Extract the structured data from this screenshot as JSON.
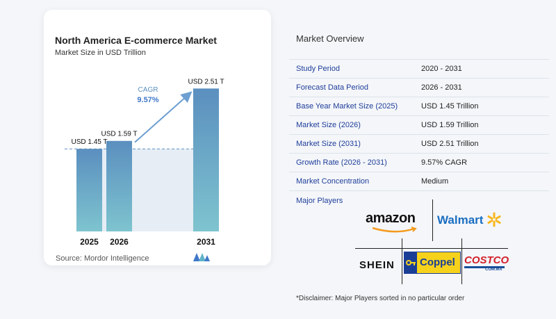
{
  "chart_data": {
    "type": "bar",
    "title": "North America E-commerce Market",
    "subtitle": "Market Size in USD Trillion",
    "categories": [
      "2025",
      "2026",
      "2031"
    ],
    "values": [
      1.45,
      1.59,
      2.51
    ],
    "value_labels": [
      "USD 1.45 T",
      "USD 1.59 T",
      "USD 2.51 T"
    ],
    "cagr_label": "CAGR",
    "cagr_value": "9.57%",
    "ylim": [
      0,
      2.6
    ]
  },
  "source": "Source:  Mordor Intelligence",
  "overview": {
    "title": "Market Overview",
    "rows": [
      {
        "key": "Study Period",
        "value": "2020 - 2031"
      },
      {
        "key": "Forecast Data Period",
        "value": "2026 - 2031"
      },
      {
        "key": "Base Year Market Size (2025)",
        "value": "USD 1.45 Trillion"
      },
      {
        "key": "Market Size (2026)",
        "value": "USD 1.59 Trillion"
      },
      {
        "key": "Market Size (2031)",
        "value": "USD 2.51 Trillion"
      },
      {
        "key": "Growth Rate (2026 - 2031)",
        "value": "9.57% CAGR"
      },
      {
        "key": "Market Concentration",
        "value": "Medium"
      }
    ]
  },
  "major_players": {
    "title": "Major Players",
    "brands": [
      "amazon",
      "Walmart",
      "SHEIN",
      "Coppel",
      "COSTCO",
      "COM.MX"
    ]
  },
  "disclaimer": "*Disclaimer: Major Players sorted in no particular order",
  "colors": {
    "bar_top": "#5b8fbf",
    "bar_bottom": "#7ec4cf",
    "accent": "#3f78c9",
    "label_blue": "#1f3d9a"
  }
}
